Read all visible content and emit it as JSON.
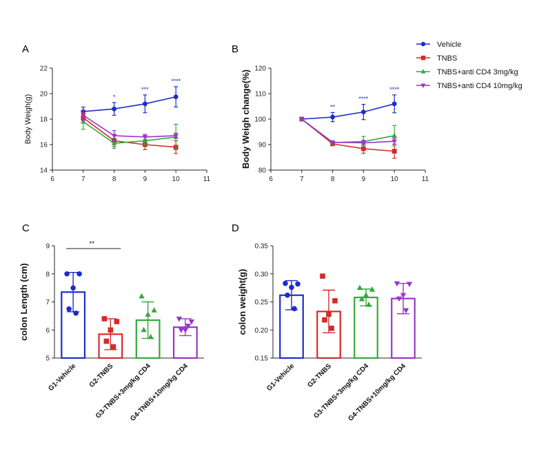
{
  "chart_data": [
    {
      "panel": "A",
      "type": "line",
      "ylabel": "Body Weigh(g)",
      "x_ticks": [
        "6",
        "7",
        "8",
        "9",
        "10",
        "11"
      ],
      "y_ticks": [
        "14",
        "16",
        "18",
        "20",
        "22"
      ],
      "xlim": [
        6,
        11
      ],
      "ylim": [
        14,
        22
      ],
      "series": [
        {
          "name": "Vehicle",
          "color": "#1b2cc8",
          "marker": "circle",
          "x": [
            7,
            8,
            9,
            10
          ],
          "y": [
            18.6,
            18.8,
            19.2,
            19.75
          ],
          "err": [
            0.35,
            0.5,
            0.7,
            0.8
          ]
        },
        {
          "name": "TNBS",
          "color": "#d42a2a",
          "marker": "square",
          "x": [
            7,
            8,
            9,
            10
          ],
          "y": [
            18.1,
            16.3,
            16.0,
            15.8
          ],
          "err": [
            0.4,
            0.45,
            0.4,
            0.5
          ]
        },
        {
          "name": "TNBS+anti CD4 3mg/kg",
          "color": "#33a839",
          "marker": "triangle-up",
          "x": [
            7,
            8,
            9,
            10
          ],
          "y": [
            17.8,
            16.1,
            16.3,
            16.6
          ],
          "err": [
            0.6,
            0.4,
            0.3,
            1.0
          ]
        },
        {
          "name": "TNBS+anti CD4 10mg/kg",
          "color": "#9b33c9",
          "marker": "triangle-down",
          "x": [
            7,
            8,
            9,
            10
          ],
          "y": [
            18.3,
            16.7,
            16.6,
            16.7
          ],
          "err": [
            0.4,
            0.4,
            0.2,
            0.2
          ]
        }
      ],
      "annotations": [
        {
          "x": 8,
          "text": "*"
        },
        {
          "x": 9,
          "text": "***"
        },
        {
          "x": 10,
          "text": "****"
        }
      ]
    },
    {
      "panel": "B",
      "type": "line",
      "ylabel": "Body Weigh change(%)",
      "x_ticks": [
        "6",
        "7",
        "8",
        "9",
        "10",
        "11"
      ],
      "y_ticks": [
        "80",
        "90",
        "100",
        "110",
        "120"
      ],
      "xlim": [
        6,
        11
      ],
      "ylim": [
        80,
        120
      ],
      "series": [
        {
          "name": "Vehicle",
          "color": "#1b2cc8",
          "marker": "circle",
          "x": [
            7,
            8,
            9,
            10
          ],
          "y": [
            100,
            100.8,
            102.8,
            106.0
          ],
          "err": [
            0,
            1.8,
            3.0,
            3.5
          ]
        },
        {
          "name": "TNBS",
          "color": "#d42a2a",
          "marker": "square",
          "x": [
            7,
            8,
            9,
            10
          ],
          "y": [
            100,
            90.3,
            88.4,
            87.4
          ],
          "err": [
            0,
            0.6,
            1.8,
            2.8
          ]
        },
        {
          "name": "TNBS+anti CD4 3mg/kg",
          "color": "#33a839",
          "marker": "triangle-up",
          "x": [
            7,
            8,
            9,
            10
          ],
          "y": [
            100,
            90.8,
            91.2,
            93.5
          ],
          "err": [
            0,
            0.5,
            2.0,
            4.0
          ]
        },
        {
          "name": "TNBS+anti CD4 10mg/kg",
          "color": "#9b33c9",
          "marker": "triangle-down",
          "x": [
            7,
            8,
            9,
            10
          ],
          "y": [
            100,
            90.9,
            90.7,
            91.3
          ],
          "err": [
            0,
            0.5,
            1.0,
            1.2
          ]
        }
      ],
      "annotations": [
        {
          "x": 8,
          "text": "**"
        },
        {
          "x": 9,
          "text": "****"
        },
        {
          "x": 10,
          "text": "****"
        }
      ]
    },
    {
      "panel": "C",
      "type": "bar",
      "ylabel": "colon Length (cm)",
      "categories": [
        "G1-Vehicle",
        "G2-TNBS",
        "G3-TNBS+3mg/kg CD4",
        "G4-TNBS+10mg/kg CD4"
      ],
      "y_ticks": [
        "5",
        "6",
        "7",
        "8",
        "9"
      ],
      "ylim": [
        5,
        9
      ],
      "colors": [
        "#1b2cc8",
        "#d42a2a",
        "#33a839",
        "#9b33c9"
      ],
      "markers": [
        "circle",
        "square",
        "triangle-up",
        "triangle-down"
      ],
      "values": [
        7.35,
        5.85,
        6.35,
        6.1
      ],
      "err": [
        0.7,
        0.55,
        0.65,
        0.3
      ],
      "points": [
        [
          8.0,
          8.0,
          7.5,
          6.75,
          6.6
        ],
        [
          6.4,
          6.3,
          6.0,
          5.6,
          5.4
        ],
        [
          7.2,
          6.7,
          6.55,
          6.0,
          5.75
        ],
        [
          6.4,
          6.3,
          6.0,
          6.0,
          6.15
        ]
      ],
      "significance": [
        {
          "from": 0,
          "to": 1,
          "text": "**"
        }
      ]
    },
    {
      "panel": "D",
      "type": "bar",
      "ylabel": "colon weight(g)",
      "categories": [
        "G1-Vehicle",
        "G2-TNBS",
        "G3-TNBS+3mg/kg CD4",
        "G4-TNBS+10mg/kg CD4"
      ],
      "y_ticks": [
        "0.15",
        "0.20",
        "0.25",
        "0.30",
        "0.35"
      ],
      "ylim": [
        0.15,
        0.35
      ],
      "colors": [
        "#1b2cc8",
        "#d42a2a",
        "#33a839",
        "#9b33c9"
      ],
      "markers": [
        "circle",
        "square",
        "triangle-up",
        "triangle-down"
      ],
      "values": [
        0.262,
        0.233,
        0.258,
        0.256
      ],
      "err": [
        0.026,
        0.038,
        0.015,
        0.027
      ],
      "points": [
        [
          0.283,
          0.282,
          0.276,
          0.262,
          0.238
        ],
        [
          0.296,
          0.252,
          0.228,
          0.218,
          0.203
        ],
        [
          0.275,
          0.272,
          0.262,
          0.255,
          0.245
        ],
        [
          0.283,
          0.282,
          0.262,
          0.256,
          0.235
        ]
      ],
      "significance": []
    }
  ],
  "labels": {
    "panel_a": "A",
    "panel_b": "B",
    "panel_c": "C",
    "panel_d": "D"
  },
  "legend": [
    {
      "label": "Vehicle",
      "color": "#1b2cc8",
      "marker": "circle"
    },
    {
      "label": "TNBS",
      "color": "#d42a2a",
      "marker": "square"
    },
    {
      "label": "TNBS+anti CD4 3mg/kg",
      "color": "#33a839",
      "marker": "triangle-up"
    },
    {
      "label": "TNBS+anti CD4 10mg/kg",
      "color": "#9b33c9",
      "marker": "triangle-down"
    }
  ]
}
